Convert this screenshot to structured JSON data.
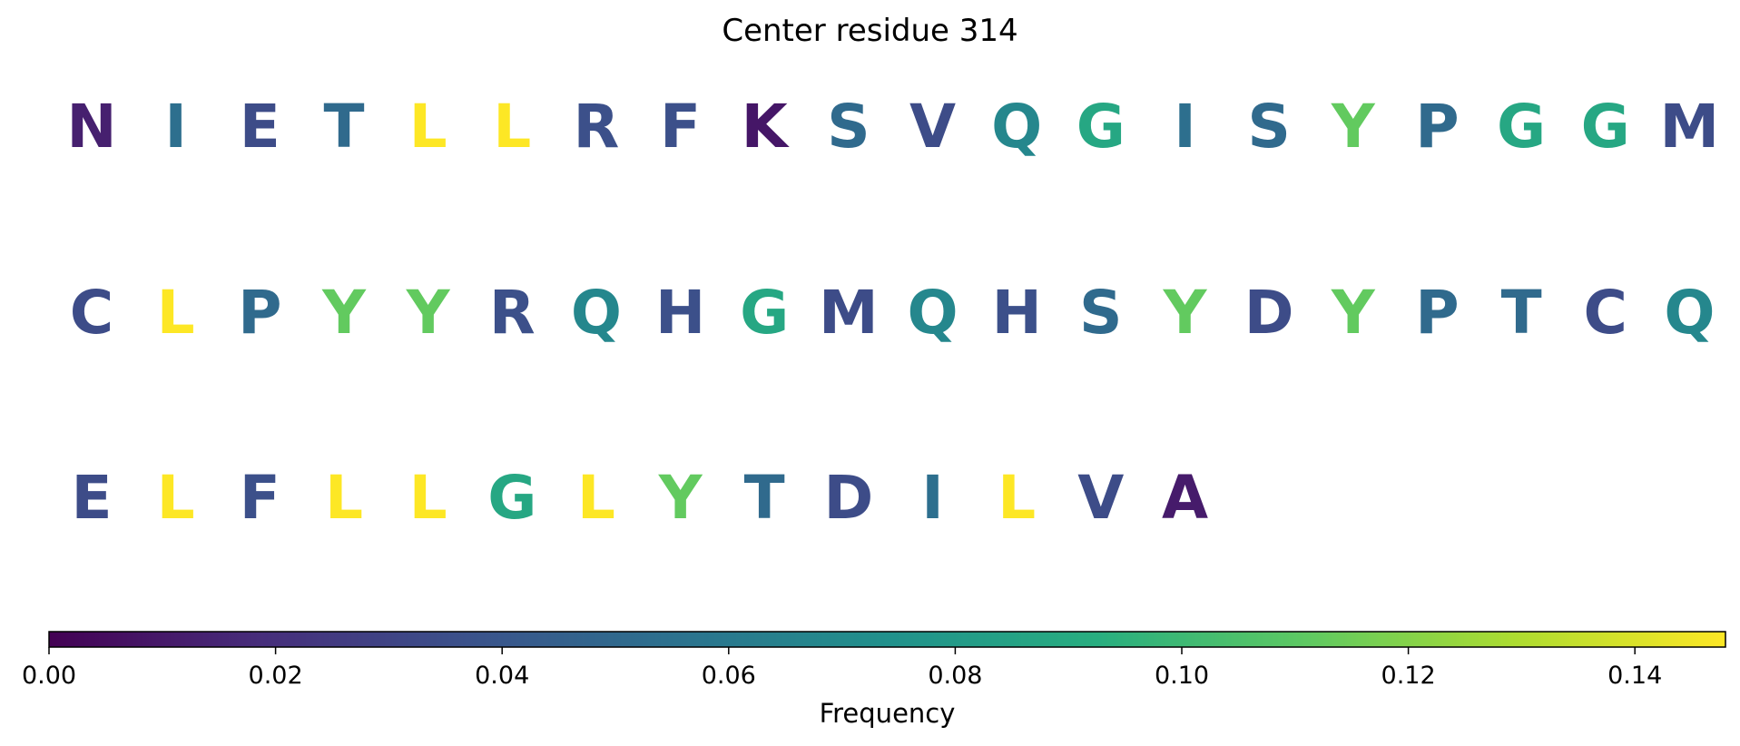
{
  "chart_data": {
    "type": "heatmap",
    "title": "Center residue 314",
    "colormap": "viridis",
    "rows": [
      {
        "residues": [
          "N",
          "I",
          "E",
          "T",
          "L",
          "L",
          "R",
          "F",
          "K",
          "S",
          "V",
          "Q",
          "G",
          "I",
          "S",
          "Y",
          "P",
          "G",
          "G",
          "M"
        ],
        "frequencies": [
          0.013,
          0.054,
          0.034,
          0.051,
          0.148,
          0.148,
          0.036,
          0.036,
          0.009,
          0.051,
          0.034,
          0.068,
          0.088,
          0.054,
          0.051,
          0.112,
          0.051,
          0.088,
          0.088,
          0.034
        ]
      },
      {
        "residues": [
          "C",
          "L",
          "P",
          "Y",
          "Y",
          "R",
          "Q",
          "H",
          "G",
          "M",
          "Q",
          "H",
          "S",
          "Y",
          "D",
          "Y",
          "P",
          "T",
          "C",
          "Q"
        ],
        "frequencies": [
          0.034,
          0.148,
          0.051,
          0.112,
          0.112,
          0.036,
          0.068,
          0.036,
          0.088,
          0.034,
          0.068,
          0.036,
          0.051,
          0.112,
          0.034,
          0.112,
          0.051,
          0.051,
          0.034,
          0.068
        ]
      },
      {
        "residues": [
          "E",
          "L",
          "F",
          "L",
          "L",
          "G",
          "L",
          "Y",
          "T",
          "D",
          "I",
          "L",
          "V",
          "A"
        ],
        "frequencies": [
          0.034,
          0.148,
          0.036,
          0.148,
          0.148,
          0.088,
          0.148,
          0.112,
          0.051,
          0.034,
          0.054,
          0.148,
          0.034,
          0.011
        ]
      }
    ],
    "colorbar": {
      "label": "Frequency",
      "range": [
        0,
        0.148
      ],
      "ticks": [
        0.0,
        0.02,
        0.04,
        0.06,
        0.08,
        0.1,
        0.12,
        0.14
      ],
      "tick_labels": [
        "0.00",
        "0.02",
        "0.04",
        "0.06",
        "0.08",
        "0.10",
        "0.12",
        "0.14"
      ],
      "orientation": "horizontal",
      "placement": "bottom"
    }
  }
}
